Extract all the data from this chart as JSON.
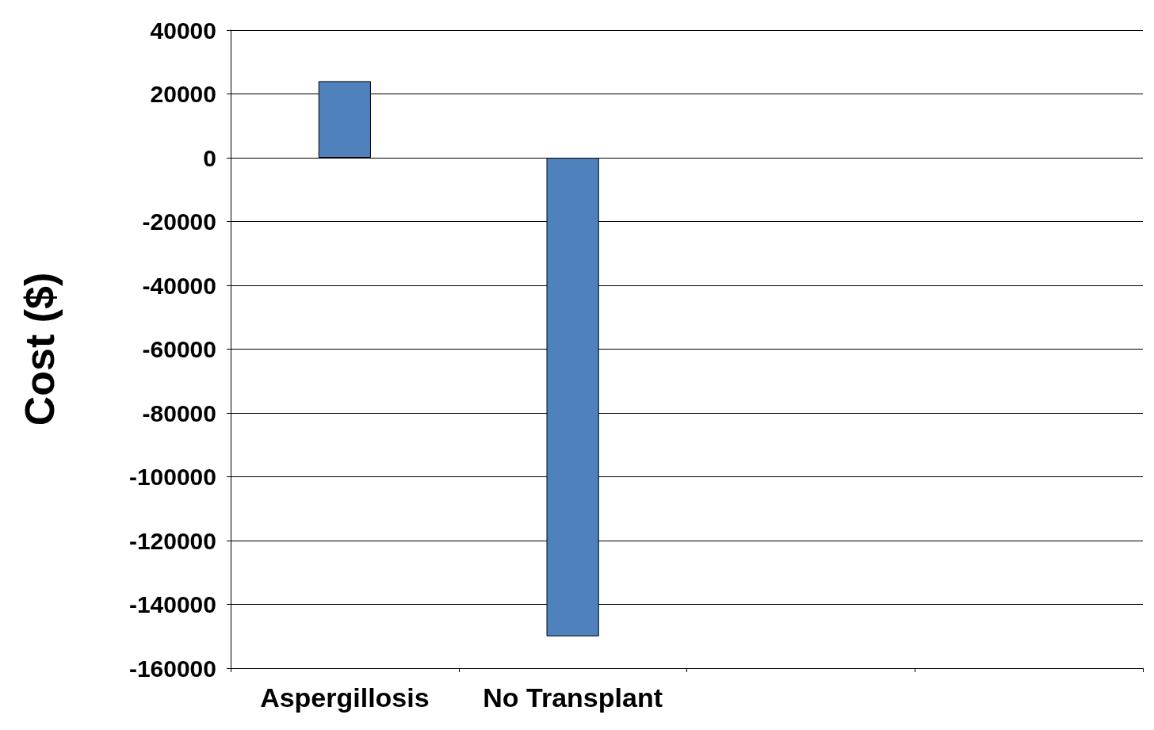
{
  "chart_data": {
    "type": "bar",
    "ylabel": "Cost ($)",
    "categories": [
      "Aspergillosis",
      "No Transplant",
      null,
      null
    ],
    "values": [
      24000,
      -150000,
      null,
      null
    ],
    "color": "#4f81bd",
    "ylim": [
      -160000,
      40000
    ],
    "yticks": [
      -160000,
      -140000,
      -120000,
      -100000,
      -80000,
      -60000,
      -40000,
      -20000,
      0,
      20000,
      40000
    ],
    "grid": "y"
  }
}
